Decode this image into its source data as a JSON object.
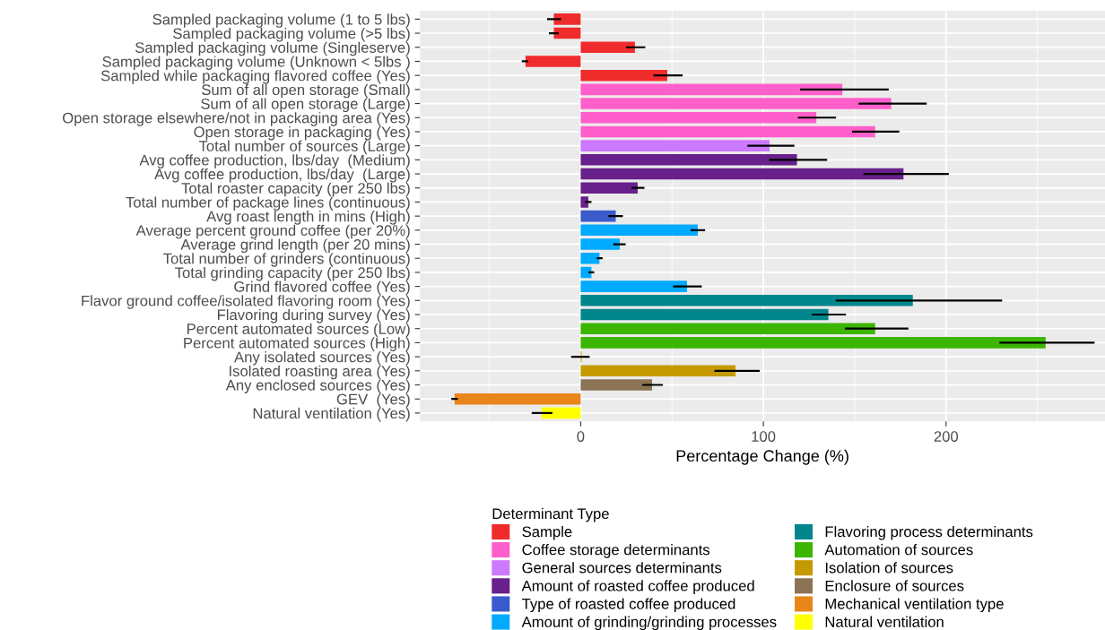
{
  "chart_data": {
    "type": "bar",
    "orientation": "horizontal",
    "xlabel": "Percentage Change (%)",
    "legend_title": "Determinant Type",
    "legend": "bottom",
    "grid": true,
    "categories": [
      "Sampled packaging volume (1 to 5 lbs)",
      "Sampled packaging volume (>5 lbs)",
      "Sampled packaging volume (Singleserve)",
      "Sampled packaging volume (Unknown < 5lbs )",
      "Sampled while packaging flavored coffee (Yes)",
      "Sum of all open storage (Small)",
      "Sum of all open storage (Large)",
      "Open storage elsewhere/not in packaging area (Yes)",
      "Open storage in packaging (Yes)",
      "Total number of sources (Large)",
      "Avg coffee production, lbs/day  (Medium)",
      "Avg coffee production, lbs/day  (Large)",
      "Total roaster capacity (per 250 lbs)",
      "Total number of package lines (continuous)",
      "Avg roast length in mins (High)",
      "Average percent ground coffee (per 20%)",
      "Average grind length (per 20 mins)",
      "Total number of grinders (continuous)",
      "Total grinding capacity (per 250 lbs)",
      "Grind flavored coffee (Yes)",
      "Flavor ground coffee/isolated flavoring room (Yes)",
      "Flavoring during survey (Yes)",
      "Percent automated sources (Low)",
      "Percent automated sources (High)",
      "Any isolated sources (Yes)",
      "Isolated roasting area (Yes)",
      "Any enclosed sources (Yes)",
      "GEV  (Yes)",
      "Natural ventilation (Yes)"
    ],
    "series": [
      {
        "name": "Sample",
        "color": "#f02b2b",
        "values": [
          -14.7,
          -14.7,
          29.7,
          -30.2,
          47.4,
          null,
          null,
          null,
          null,
          null,
          null,
          null,
          null,
          null,
          null,
          null,
          null,
          null,
          null,
          null,
          null,
          null,
          null,
          null,
          null,
          null,
          null,
          null,
          null
        ],
        "errors": [
          [
            -18.4,
            -10.8
          ],
          [
            -17.4,
            -12.0
          ],
          [
            24.8,
            35.4
          ],
          [
            -32.2,
            -28.7
          ],
          [
            39.8,
            55.8
          ],
          null,
          null,
          null,
          null,
          null,
          null,
          null,
          null,
          null,
          null,
          null,
          null,
          null,
          null,
          null,
          null,
          null,
          null,
          null,
          null,
          null,
          null,
          null,
          null
        ]
      },
      {
        "name": "Coffee storage determinants",
        "color": "#ff5fca",
        "values": [
          null,
          null,
          null,
          null,
          null,
          143.2,
          170.0,
          129.0,
          161.2,
          null,
          null,
          null,
          null,
          null,
          null,
          null,
          null,
          null,
          null,
          null,
          null,
          null,
          null,
          null,
          null,
          null,
          null,
          null,
          null
        ],
        "errors": [
          null,
          null,
          null,
          null,
          null,
          [
            120.1,
            168.6
          ],
          [
            152.1,
            189.4
          ],
          [
            118.9,
            139.8
          ],
          [
            148.6,
            174.4
          ],
          null,
          null,
          null,
          null,
          null,
          null,
          null,
          null,
          null,
          null,
          null,
          null,
          null,
          null,
          null,
          null,
          null,
          null,
          null,
          null
        ]
      },
      {
        "name": "General sources determinants",
        "color": "#cc79ff",
        "values": [
          null,
          null,
          null,
          null,
          null,
          null,
          null,
          null,
          null,
          103.4,
          null,
          null,
          null,
          null,
          null,
          null,
          null,
          null,
          null,
          null,
          null,
          null,
          null,
          null,
          null,
          null,
          null,
          null,
          null
        ],
        "errors": [
          null,
          null,
          null,
          null,
          null,
          null,
          null,
          null,
          null,
          [
            91.2,
            117.0
          ],
          null,
          null,
          null,
          null,
          null,
          null,
          null,
          null,
          null,
          null,
          null,
          null,
          null,
          null,
          null,
          null,
          null,
          null,
          null
        ]
      },
      {
        "name": "Amount of roasted coffee produced",
        "color": "#68208a",
        "values": [
          null,
          null,
          null,
          null,
          null,
          null,
          null,
          null,
          null,
          null,
          118.4,
          176.7,
          31.2,
          4.2,
          null,
          null,
          null,
          null,
          null,
          null,
          null,
          null,
          null,
          null,
          null,
          null,
          null,
          null,
          null
        ],
        "errors": [
          null,
          null,
          null,
          null,
          null,
          null,
          null,
          null,
          null,
          null,
          [
            103.2,
            134.9
          ],
          [
            154.8,
            201.5
          ],
          [
            27.8,
            34.9
          ],
          [
            2.5,
            5.9
          ],
          null,
          null,
          null,
          null,
          null,
          null,
          null,
          null,
          null,
          null,
          null,
          null,
          null,
          null,
          null
        ]
      },
      {
        "name": "Type of roasted coffee produced",
        "color": "#3a5bcc",
        "values": [
          null,
          null,
          null,
          null,
          null,
          null,
          null,
          null,
          null,
          null,
          null,
          null,
          null,
          null,
          19.2,
          null,
          null,
          null,
          null,
          null,
          null,
          null,
          null,
          null,
          null,
          null,
          null,
          null,
          null
        ],
        "errors": [
          null,
          null,
          null,
          null,
          null,
          null,
          null,
          null,
          null,
          null,
          null,
          null,
          null,
          null,
          [
            15.2,
            23.1
          ],
          null,
          null,
          null,
          null,
          null,
          null,
          null,
          null,
          null,
          null,
          null,
          null,
          null,
          null
        ]
      },
      {
        "name": "Amount of grinding/grinding processes",
        "color": "#00aaff",
        "values": [
          null,
          null,
          null,
          null,
          null,
          null,
          null,
          null,
          null,
          null,
          null,
          null,
          null,
          null,
          null,
          64.1,
          21.4,
          10.3,
          5.9,
          58.2,
          null,
          null,
          null,
          null,
          null,
          null,
          null,
          null,
          null
        ],
        "errors": [
          null,
          null,
          null,
          null,
          null,
          null,
          null,
          null,
          null,
          null,
          null,
          null,
          null,
          null,
          null,
          [
            60.2,
            68.1
          ],
          [
            17.9,
            24.6
          ],
          [
            8.8,
            12.0
          ],
          [
            4.2,
            7.4
          ],
          [
            50.6,
            66.3
          ],
          null,
          null,
          null,
          null,
          null,
          null,
          null,
          null,
          null
        ]
      },
      {
        "name": "Flavoring process determinants",
        "color": "#00868b",
        "values": [
          null,
          null,
          null,
          null,
          null,
          null,
          null,
          null,
          null,
          null,
          null,
          null,
          null,
          null,
          null,
          null,
          null,
          null,
          null,
          null,
          181.8,
          135.6,
          null,
          null,
          null,
          null,
          null,
          null,
          null
        ],
        "errors": [
          null,
          null,
          null,
          null,
          null,
          null,
          null,
          null,
          null,
          null,
          null,
          null,
          null,
          null,
          null,
          null,
          null,
          null,
          null,
          null,
          [
            139.6,
            230.7
          ],
          [
            126.5,
            145.2
          ],
          null,
          null,
          null,
          null,
          null,
          null,
          null
        ]
      },
      {
        "name": "Automation of sources",
        "color": "#3cb500",
        "values": [
          null,
          null,
          null,
          null,
          null,
          null,
          null,
          null,
          null,
          null,
          null,
          null,
          null,
          null,
          null,
          null,
          null,
          null,
          null,
          null,
          null,
          null,
          161.2,
          254.5,
          null,
          null,
          null,
          null,
          null
        ],
        "errors": [
          null,
          null,
          null,
          null,
          null,
          null,
          null,
          null,
          null,
          null,
          null,
          null,
          null,
          null,
          null,
          null,
          null,
          null,
          null,
          null,
          null,
          null,
          [
            144.7,
            179.4
          ],
          [
            229.2,
            281.3
          ],
          null,
          null,
          null,
          null,
          null
        ]
      },
      {
        "name": "Isolation of sources",
        "color": "#c49a00",
        "values": [
          null,
          null,
          null,
          null,
          null,
          null,
          null,
          null,
          null,
          null,
          null,
          null,
          null,
          null,
          null,
          null,
          null,
          null,
          null,
          null,
          null,
          null,
          null,
          null,
          0.5,
          84.8,
          null,
          null,
          null
        ],
        "errors": [
          null,
          null,
          null,
          null,
          null,
          null,
          null,
          null,
          null,
          null,
          null,
          null,
          null,
          null,
          null,
          null,
          null,
          null,
          null,
          null,
          null,
          null,
          null,
          null,
          [
            -5.2,
            4.9
          ],
          [
            73.2,
            98.0
          ],
          null,
          null,
          null
        ]
      },
      {
        "name": "Enclosure of sources",
        "color": "#8b7355",
        "values": [
          null,
          null,
          null,
          null,
          null,
          null,
          null,
          null,
          null,
          null,
          null,
          null,
          null,
          null,
          null,
          null,
          null,
          null,
          null,
          null,
          null,
          null,
          null,
          null,
          null,
          null,
          39.1,
          null,
          null
        ],
        "errors": [
          null,
          null,
          null,
          null,
          null,
          null,
          null,
          null,
          null,
          null,
          null,
          null,
          null,
          null,
          null,
          null,
          null,
          null,
          null,
          null,
          null,
          null,
          null,
          null,
          null,
          null,
          [
            33.7,
            45.0
          ],
          null,
          null
        ]
      },
      {
        "name": "Mechanical ventilation type",
        "color": "#e8861a",
        "values": [
          null,
          null,
          null,
          null,
          null,
          null,
          null,
          null,
          null,
          null,
          null,
          null,
          null,
          null,
          null,
          null,
          null,
          null,
          null,
          null,
          null,
          null,
          null,
          null,
          null,
          null,
          null,
          -69.0,
          null
        ],
        "errors": [
          null,
          null,
          null,
          null,
          null,
          null,
          null,
          null,
          null,
          null,
          null,
          null,
          null,
          null,
          null,
          null,
          null,
          null,
          null,
          null,
          null,
          null,
          null,
          null,
          null,
          null,
          null,
          [
            -70.8,
            -67.3
          ],
          null
        ]
      },
      {
        "name": "Natural ventilation",
        "color": "#ffff00",
        "values": [
          null,
          null,
          null,
          null,
          null,
          null,
          null,
          null,
          null,
          null,
          null,
          null,
          null,
          null,
          null,
          null,
          null,
          null,
          null,
          null,
          null,
          null,
          null,
          null,
          null,
          null,
          null,
          null,
          -21.4
        ],
        "errors": [
          null,
          null,
          null,
          null,
          null,
          null,
          null,
          null,
          null,
          null,
          null,
          null,
          null,
          null,
          null,
          null,
          null,
          null,
          null,
          null,
          null,
          null,
          null,
          null,
          null,
          null,
          null,
          null,
          [
            -26.8,
            -15.5
          ]
        ]
      }
    ],
    "xlim": [
      -88,
      287
    ],
    "xticks": [
      {
        "value": -50,
        "label": null
      },
      0,
      {
        "value": 50,
        "label": null
      },
      100,
      {
        "value": 150,
        "label": null
      },
      200,
      {
        "value": 250,
        "label": null
      }
    ]
  }
}
